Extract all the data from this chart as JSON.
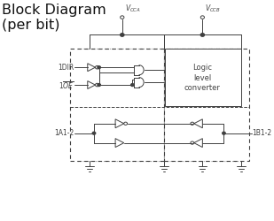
{
  "title": "Block Diagram\n(per bit)",
  "title_fontsize": 11.5,
  "vcca_label": "$V_{CCA}$",
  "vccb_label": "$V_{CCB}$",
  "logic_label": "Logic\nlevel\nconverter",
  "dir_label": "1DIR",
  "oe_label": "1$\\overline{OE}$",
  "a_label": "1A1-2",
  "b_label": "1B1-2",
  "bg_color": "#ffffff",
  "line_color": "#404040",
  "lw": 0.7
}
